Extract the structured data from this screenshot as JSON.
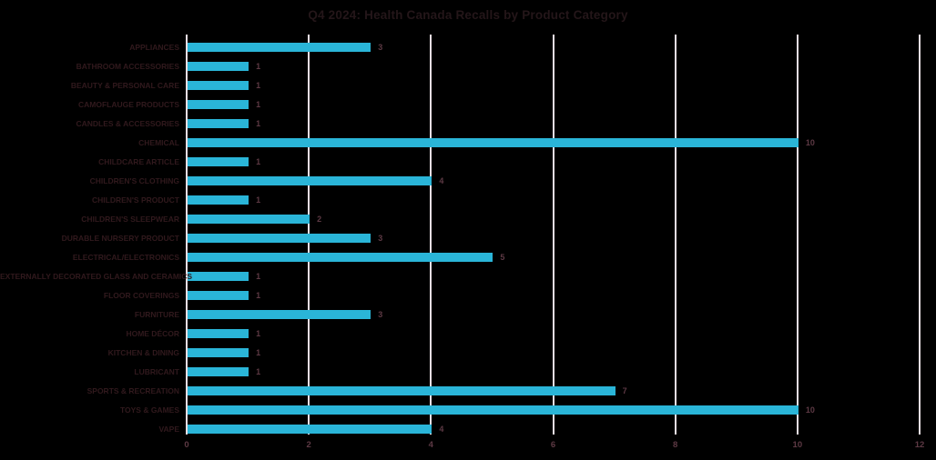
{
  "colors": {
    "bar": "#2ab5d8",
    "gridline": "#e9dee3",
    "title_text": "#241619",
    "category_text": "#31191d",
    "value_text": "#5d3944",
    "background": "#000000"
  },
  "chart_data": {
    "type": "bar",
    "orientation": "horizontal",
    "title": "Q4 2024: Health Canada Recalls by Product Category",
    "categories": [
      "APPLIANCES",
      "BATHROOM ACCESSORIES",
      "BEAUTY & PERSONAL CARE",
      "CAMOFLAUGE PRODUCTS",
      "CANDLES & ACCESSORIES",
      "CHEMICAL",
      "CHILDCARE ARTICLE",
      "CHILDREN'S CLOTHING",
      "CHILDREN'S PRODUCT",
      "CHILDREN'S SLEEPWEAR",
      "DURABLE NURSERY PRODUCT",
      "ELECTRICAL/ELECTRONICS",
      "EXTERNALLY DECORATED GLASS AND CERAMICS",
      "FLOOR COVERINGS",
      "FURNITURE",
      "HOME DÉCOR",
      "KITCHEN & DINING",
      "LUBRICANT",
      "SPORTS & RECREATION",
      "TOYS & GAMES",
      "VAPE"
    ],
    "values": [
      3,
      1,
      1,
      1,
      1,
      10,
      1,
      4,
      1,
      2,
      3,
      5,
      1,
      1,
      3,
      1,
      1,
      1,
      7,
      10,
      4
    ],
    "xlabel": "",
    "ylabel": "",
    "xlim": [
      0,
      12
    ],
    "x_ticks": [
      0,
      2,
      4,
      6,
      8,
      10,
      12
    ],
    "grid": true,
    "legend": false,
    "data_labels": true
  }
}
